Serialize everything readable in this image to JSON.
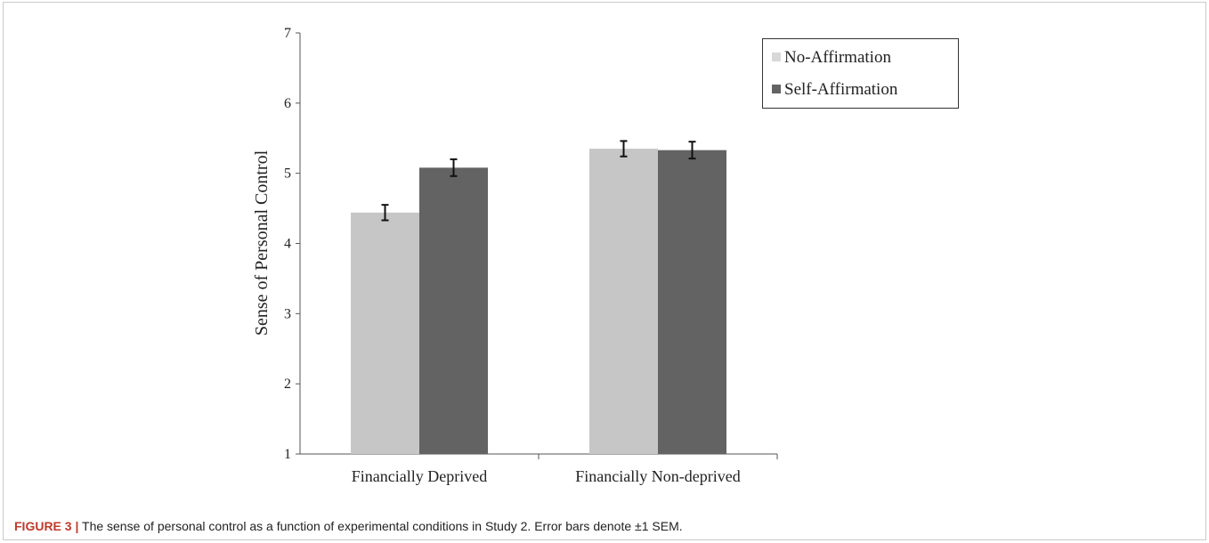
{
  "chart_data": {
    "type": "bar",
    "title": "",
    "xlabel": "",
    "ylabel": "Sense of Personal Control",
    "ylim": [
      1,
      7
    ],
    "yticks": [
      "1",
      "2",
      "3",
      "4",
      "5",
      "6",
      "7"
    ],
    "categories": [
      "Financially Deprived",
      "Financially Non-deprived"
    ],
    "series": [
      {
        "name": "No-Affirmation",
        "color": "#c6c6c6",
        "values": [
          4.44,
          5.35
        ],
        "errors": [
          0.11,
          0.11
        ]
      },
      {
        "name": "Self-Affirmation",
        "color": "#636363",
        "values": [
          5.08,
          5.33
        ],
        "errors": [
          0.12,
          0.12
        ]
      }
    ],
    "error_bars": "±1 SEM",
    "legend_position": "top-right",
    "grid": false
  },
  "caption": {
    "label": "FIGURE 3 |",
    "text": " The sense of personal control as a function of experimental conditions in Study 2. Error bars denote ±1 SEM."
  }
}
